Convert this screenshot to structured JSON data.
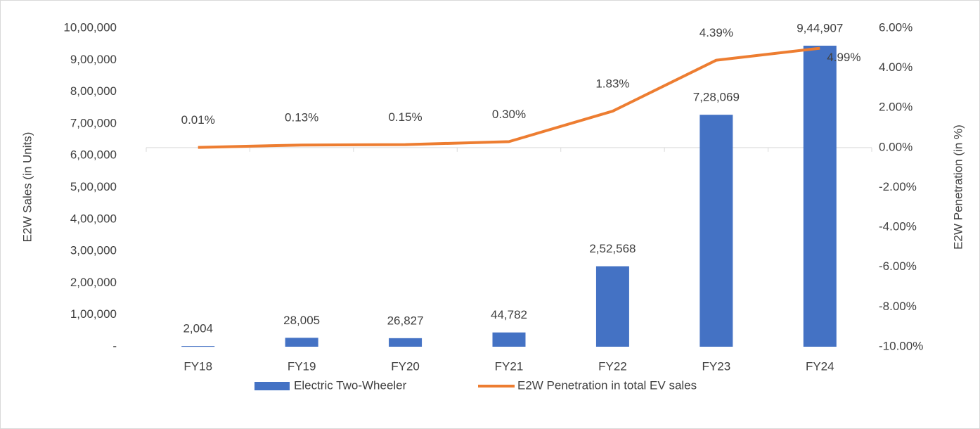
{
  "chart_data": {
    "type": "bar",
    "categories": [
      "FY18",
      "FY19",
      "FY20",
      "FY21",
      "FY22",
      "FY23",
      "FY24"
    ],
    "series": [
      {
        "name": "Electric Two-Wheeler",
        "type": "bar",
        "color": "#4472c4",
        "values": [
          2004,
          28005,
          26827,
          44782,
          252568,
          728069,
          944907
        ],
        "value_labels": [
          "2,004",
          "28,005",
          "26,827",
          "44,782",
          "2,52,568",
          "7,28,069",
          "9,44,907"
        ]
      },
      {
        "name": "E2W Penetration in total EV sales",
        "type": "line",
        "axis": "y2",
        "color": "#ed7d31",
        "values": [
          0.01,
          0.13,
          0.15,
          0.3,
          1.83,
          4.39,
          4.99
        ],
        "value_labels": [
          "0.01%",
          "0.13%",
          "0.15%",
          "0.30%",
          "1.83%",
          "4.39%",
          "4.99%"
        ]
      }
    ],
    "ylabel": "E2W Sales (in Units)",
    "y2label": "E2W Penetration (in %)",
    "ylim": [
      0,
      1000000
    ],
    "yticks": [
      {
        "value": 0,
        "label": "-"
      },
      {
        "value": 100000,
        "label": "1,00,000"
      },
      {
        "value": 200000,
        "label": "2,00,000"
      },
      {
        "value": 300000,
        "label": "3,00,000"
      },
      {
        "value": 400000,
        "label": "4,00,000"
      },
      {
        "value": 500000,
        "label": "5,00,000"
      },
      {
        "value": 600000,
        "label": "6,00,000"
      },
      {
        "value": 700000,
        "label": "7,00,000"
      },
      {
        "value": 800000,
        "label": "8,00,000"
      },
      {
        "value": 900000,
        "label": "9,00,000"
      },
      {
        "value": 1000000,
        "label": "10,00,000"
      }
    ],
    "y2lim": [
      -10,
      6
    ],
    "y2ticks": [
      {
        "value": -10,
        "label": "-10.00%"
      },
      {
        "value": -8,
        "label": "-8.00%"
      },
      {
        "value": -6,
        "label": "-6.00%"
      },
      {
        "value": -4,
        "label": "-4.00%"
      },
      {
        "value": -2,
        "label": "-2.00%"
      },
      {
        "value": 0,
        "label": "0.00%"
      },
      {
        "value": 2,
        "label": "2.00%"
      },
      {
        "value": 4,
        "label": "4.00%"
      },
      {
        "value": 6,
        "label": "6.00%"
      }
    ],
    "legend": "bottom",
    "grid": false
  }
}
